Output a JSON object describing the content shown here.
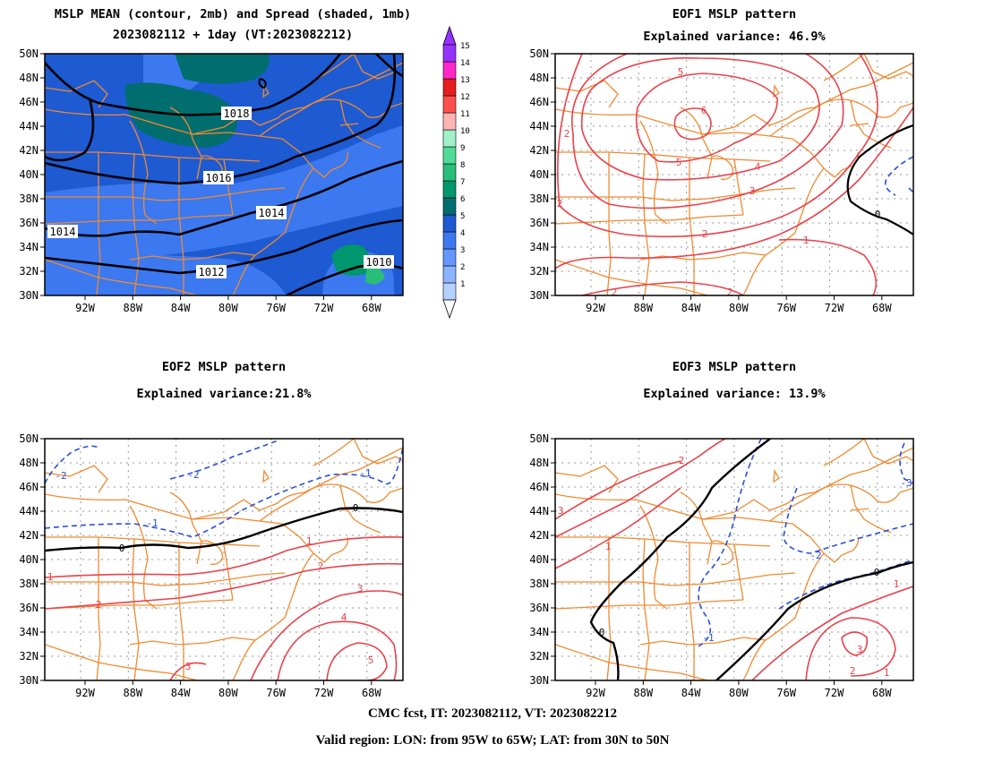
{
  "panels": [
    {
      "id": "mean",
      "title_lines": [
        "MSLP MEAN (contour, 2mb) and Spread (shaded, 1mb)",
        "2023082112 + 1day (VT:2023082212)"
      ],
      "contour_labels": [
        "1018",
        "1016",
        "1014",
        "1014",
        "1012",
        "1010"
      ]
    },
    {
      "id": "eof1",
      "title_lines": [
        "EOF1 MSLP pattern",
        "Explained variance: 46.9%"
      ],
      "contour_labels": [
        "5",
        "6",
        "5",
        "4",
        "3",
        "2",
        "2",
        "2",
        "1",
        "2",
        "0",
        "2"
      ]
    },
    {
      "id": "eof2",
      "title_lines": [
        "EOF2 MSLP pattern",
        "Explained variance:21.8%"
      ],
      "contour_labels": [
        "-2",
        "-2",
        "-1",
        "-1",
        "0",
        "0",
        "1",
        "2",
        "1",
        "2",
        "3",
        "4",
        "5",
        "3"
      ]
    },
    {
      "id": "eof3",
      "title_lines": [
        "EOF3 MSLP pattern",
        "Explained variance: 13.9%"
      ],
      "contour_labels": [
        "2",
        "3",
        "1",
        "-2",
        "-1",
        "-3",
        "0",
        "0",
        "1",
        "3",
        "2",
        "1"
      ]
    }
  ],
  "axes": {
    "lat_ticks": [
      "50N",
      "48N",
      "46N",
      "44N",
      "42N",
      "40N",
      "38N",
      "36N",
      "34N",
      "32N",
      "30N"
    ],
    "lon_ticks": [
      "92W",
      "88W",
      "84W",
      "80W",
      "76W",
      "72W",
      "68W"
    ]
  },
  "colorbar": {
    "labels": [
      "1",
      "2",
      "3",
      "4",
      "5",
      "6",
      "7",
      "8",
      "9",
      "10",
      "11",
      "12",
      "13",
      "14",
      "15"
    ],
    "colors": [
      "#b4d2ff",
      "#8cb4ff",
      "#6496ff",
      "#3c78f0",
      "#1e5ad2",
      "#006e6e",
      "#00966e",
      "#28be78",
      "#50dc96",
      "#a0f0c8",
      "#ffb4b4",
      "#ff5050",
      "#e61e1e",
      "#ff28c8",
      "#9632ff"
    ]
  },
  "footer": {
    "line1": "CMC fcst, IT: 2023082112, VT: 2023082212",
    "line2": "Valid region: LON: from 95W to 65W; LAT: from 30N to 50N"
  },
  "colors": {
    "positive_contour": "#e8434b",
    "negative_contour": "#2a4fd6",
    "zero_contour": "#000000",
    "map_lines": "#f08a30",
    "grid": "#999999"
  }
}
